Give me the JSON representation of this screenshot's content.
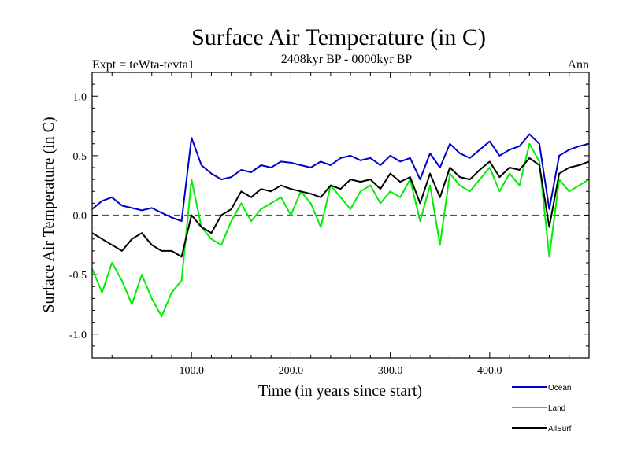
{
  "header": {
    "title": "Surface Air Temperature (in C)",
    "experiment": "Expt = teWta-tevta1",
    "period": "2408kyr BP - 0000kyr BP",
    "season": "Ann"
  },
  "chart_data": {
    "type": "line",
    "title": "Surface Air Temperature (in C)",
    "xlabel": "Time (in years since start)",
    "ylabel": "Surface Air Temperature (in C)",
    "xlim": [
      0,
      500
    ],
    "ylim": [
      -1.2,
      1.2
    ],
    "xticks": [
      100,
      200,
      300,
      400
    ],
    "xtick_labels": [
      "100.0",
      "200.0",
      "300.0",
      "400.0"
    ],
    "yticks": [
      -1.0,
      -0.5,
      0.0,
      0.5,
      1.0
    ],
    "ytick_labels": [
      "-1.0",
      "-0.5",
      "0.0",
      "0.5",
      "1.0"
    ],
    "zero_line": "dashed",
    "legend_position": "bottom-right",
    "x": [
      0,
      10,
      20,
      30,
      40,
      50,
      60,
      70,
      80,
      90,
      100,
      110,
      120,
      130,
      140,
      150,
      160,
      170,
      180,
      190,
      200,
      210,
      220,
      230,
      240,
      250,
      260,
      270,
      280,
      290,
      300,
      310,
      320,
      330,
      340,
      350,
      360,
      370,
      380,
      390,
      400,
      410,
      420,
      430,
      440,
      450,
      460,
      470,
      480,
      490,
      500
    ],
    "series": [
      {
        "name": "Ocean",
        "color": "#0000cc",
        "values": [
          0.05,
          0.12,
          0.15,
          0.08,
          0.06,
          0.04,
          0.06,
          0.02,
          -0.02,
          -0.05,
          0.65,
          0.42,
          0.35,
          0.3,
          0.32,
          0.38,
          0.36,
          0.42,
          0.4,
          0.45,
          0.44,
          0.42,
          0.4,
          0.45,
          0.42,
          0.48,
          0.5,
          0.46,
          0.48,
          0.42,
          0.5,
          0.45,
          0.48,
          0.3,
          0.52,
          0.4,
          0.6,
          0.52,
          0.48,
          0.55,
          0.62,
          0.5,
          0.55,
          0.58,
          0.68,
          0.6,
          0.05,
          0.5,
          0.55,
          0.58,
          0.6
        ]
      },
      {
        "name": "Land",
        "color": "#00ee00",
        "values": [
          -0.45,
          -0.65,
          -0.4,
          -0.55,
          -0.75,
          -0.5,
          -0.7,
          -0.85,
          -0.65,
          -0.55,
          0.3,
          -0.1,
          -0.2,
          -0.25,
          -0.05,
          0.1,
          -0.05,
          0.05,
          0.1,
          0.15,
          0.0,
          0.2,
          0.1,
          -0.1,
          0.25,
          0.15,
          0.05,
          0.2,
          0.25,
          0.1,
          0.2,
          0.15,
          0.3,
          -0.05,
          0.25,
          -0.25,
          0.35,
          0.25,
          0.2,
          0.3,
          0.4,
          0.2,
          0.35,
          0.25,
          0.6,
          0.45,
          -0.35,
          0.3,
          0.2,
          0.25,
          0.3
        ]
      },
      {
        "name": "AllSurf",
        "color": "#000000",
        "values": [
          -0.15,
          -0.2,
          -0.25,
          -0.3,
          -0.2,
          -0.15,
          -0.25,
          -0.3,
          -0.3,
          -0.35,
          0.0,
          -0.1,
          -0.15,
          0.0,
          0.05,
          0.2,
          0.15,
          0.22,
          0.2,
          0.25,
          0.22,
          0.2,
          0.18,
          0.15,
          0.25,
          0.22,
          0.3,
          0.28,
          0.3,
          0.22,
          0.35,
          0.28,
          0.32,
          0.1,
          0.35,
          0.15,
          0.4,
          0.32,
          0.3,
          0.38,
          0.45,
          0.32,
          0.4,
          0.38,
          0.48,
          0.42,
          -0.1,
          0.35,
          0.4,
          0.42,
          0.45
        ]
      }
    ]
  }
}
